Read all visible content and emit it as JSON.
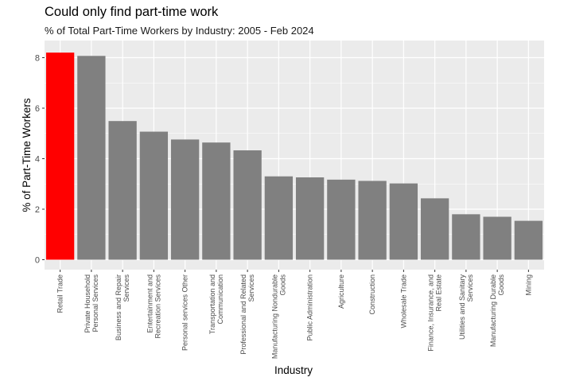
{
  "chart_data": {
    "type": "bar",
    "title": "Could only find part-time work",
    "subtitle": "% of Total Part-Time Workers by Industry: 2005 - Feb 2024",
    "xlabel": "Industry",
    "ylabel": "% of Part-Time Workers",
    "ylim": [
      0,
      8.45
    ],
    "yticks": [
      0,
      2,
      4,
      6,
      8
    ],
    "grid": true,
    "categories": [
      [
        "Retail Trade"
      ],
      [
        "Private Household",
        "Personal Services"
      ],
      [
        "Business and Repair",
        "Services"
      ],
      [
        "Entertainment and",
        "Recreation Services"
      ],
      [
        "Personal services Other"
      ],
      [
        "Transportation and",
        "Communication"
      ],
      [
        "Professional and Related",
        "Services"
      ],
      [
        "Manufacturing Nondurable",
        "Goods"
      ],
      [
        "Public Administration"
      ],
      [
        "Agriculture"
      ],
      [
        "Construction"
      ],
      [
        "Wholesale Trade"
      ],
      [
        "Finance, Insurance, and",
        "Real Estate"
      ],
      [
        "Utilities and Sanitary",
        "Services"
      ],
      [
        "Manufacturing Durable",
        "Goods"
      ],
      [
        "Mining"
      ]
    ],
    "values": [
      8.2,
      8.07,
      5.49,
      5.07,
      4.76,
      4.64,
      4.33,
      3.3,
      3.26,
      3.17,
      3.12,
      3.02,
      2.43,
      1.8,
      1.7,
      1.54
    ],
    "bar_colors": [
      "#FF0000",
      "#808080",
      "#808080",
      "#808080",
      "#808080",
      "#808080",
      "#808080",
      "#808080",
      "#808080",
      "#808080",
      "#808080",
      "#808080",
      "#808080",
      "#808080",
      "#808080",
      "#808080"
    ],
    "highlight_color": "#FF0000",
    "default_bar_color": "#808080",
    "panel_background": "#EBEBEB",
    "grid_color": "#FFFFFF"
  }
}
